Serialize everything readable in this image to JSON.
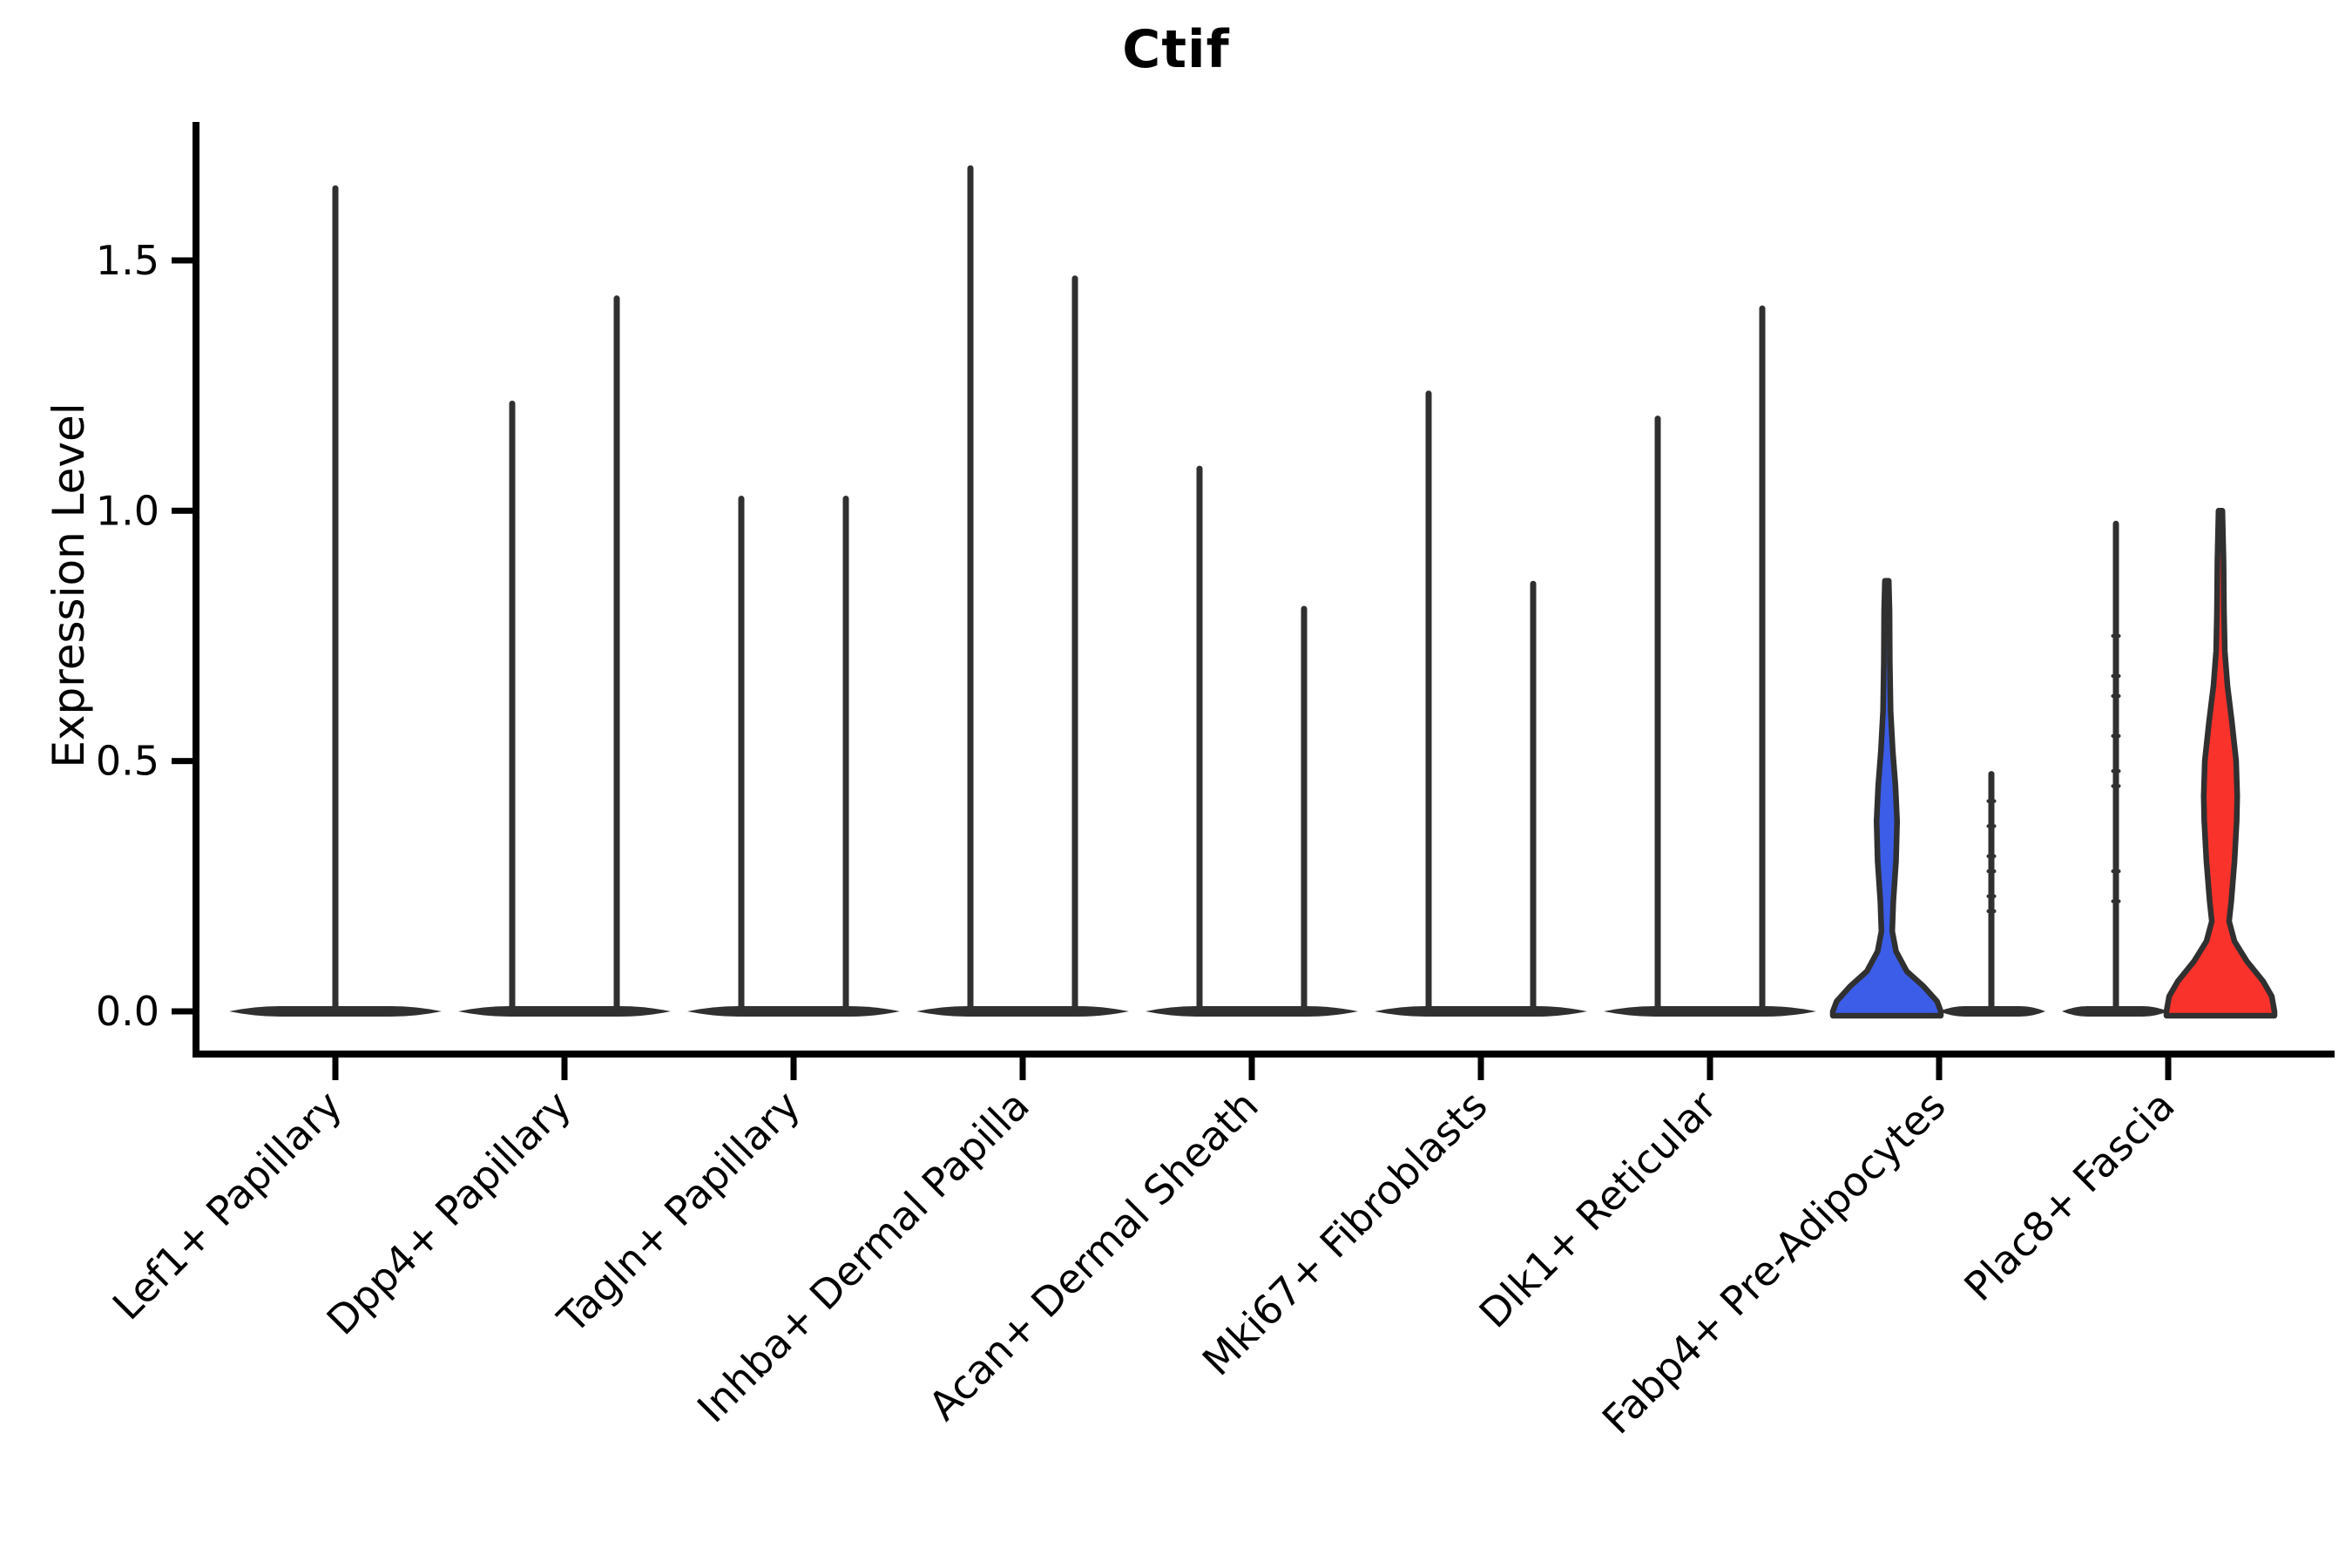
{
  "figure": {
    "title": "Ctif",
    "y_axis_title": "Expression Level"
  },
  "chart_data": {
    "type": "violin",
    "title": "Ctif",
    "xlabel": "",
    "ylabel": "Expression Level",
    "ytick_labels": [
      "0.0",
      "0.5",
      "1.0",
      "1.5"
    ],
    "ytick_values": [
      0.0,
      0.5,
      1.0,
      1.5
    ],
    "ylim": [
      -0.09,
      1.78
    ],
    "grid": false,
    "legend": "none",
    "categories": [
      "Lef1+ Papillary",
      "Dpp4+ Papillary",
      "Tagln+ Papillary",
      "Inhba+ Dermal Papilla",
      "Acan+ Dermal Sheath",
      "Mki67+ Fibroblasts",
      "Dlk1+ Reticular",
      "Fabp4+ Pre-Adipocytes",
      "Plac8+ Fascia"
    ],
    "colors": {
      "violin_outline": "#303030",
      "axis": "#000000",
      "text": "#000000",
      "highlight_blue": "#3b5de8",
      "highlight_red": "#f9322b",
      "background": "#ffffff"
    },
    "violins": [
      {
        "category_index": 0,
        "side": "single",
        "max_expression": 1.65
      },
      {
        "category_index": 1,
        "side": "left",
        "max_expression": 1.22
      },
      {
        "category_index": 1,
        "side": "right",
        "max_expression": 1.43
      },
      {
        "category_index": 2,
        "side": "left",
        "max_expression": 1.03
      },
      {
        "category_index": 2,
        "side": "right",
        "max_expression": 1.03
      },
      {
        "category_index": 3,
        "side": "left",
        "max_expression": 1.69
      },
      {
        "category_index": 3,
        "side": "right",
        "max_expression": 1.47
      },
      {
        "category_index": 4,
        "side": "left",
        "max_expression": 1.09
      },
      {
        "category_index": 4,
        "side": "right",
        "max_expression": 0.81
      },
      {
        "category_index": 5,
        "side": "left",
        "max_expression": 1.24
      },
      {
        "category_index": 5,
        "side": "right",
        "max_expression": 0.86
      },
      {
        "category_index": 6,
        "side": "left",
        "max_expression": 1.19
      },
      {
        "category_index": 6,
        "side": "right",
        "max_expression": 1.41
      },
      {
        "category_index": 7,
        "side": "left",
        "max_expression": 0.86,
        "fill": "#3b5de8",
        "profile": [
          [
            0,
            1.0
          ],
          [
            0.02,
            0.93
          ],
          [
            0.05,
            0.68
          ],
          [
            0.08,
            0.37
          ],
          [
            0.12,
            0.17
          ],
          [
            0.16,
            0.1
          ],
          [
            0.22,
            0.12
          ],
          [
            0.3,
            0.17
          ],
          [
            0.38,
            0.19
          ],
          [
            0.45,
            0.16
          ],
          [
            0.52,
            0.11
          ],
          [
            0.6,
            0.07
          ],
          [
            0.7,
            0.055
          ],
          [
            0.8,
            0.05
          ],
          [
            0.86,
            0.0
          ]
        ]
      },
      {
        "category_index": 7,
        "side": "right",
        "max_expression": 0.48,
        "dots": [
          0.42,
          0.37,
          0.31,
          0.28,
          0.23,
          0.2
        ]
      },
      {
        "category_index": 8,
        "side": "left",
        "max_expression": 0.98,
        "dots": [
          0.75,
          0.67,
          0.63,
          0.55,
          0.48,
          0.45,
          0.28,
          0.22
        ]
      },
      {
        "category_index": 8,
        "side": "right",
        "max_expression": 1.0,
        "fill": "#f9322b",
        "profile": [
          [
            0,
            1.0
          ],
          [
            0.03,
            0.95
          ],
          [
            0.06,
            0.79
          ],
          [
            0.1,
            0.49
          ],
          [
            0.14,
            0.26
          ],
          [
            0.18,
            0.16
          ],
          [
            0.22,
            0.2
          ],
          [
            0.3,
            0.26
          ],
          [
            0.38,
            0.3
          ],
          [
            0.43,
            0.31
          ],
          [
            0.5,
            0.29
          ],
          [
            0.58,
            0.21
          ],
          [
            0.65,
            0.13
          ],
          [
            0.72,
            0.08
          ],
          [
            0.8,
            0.065
          ],
          [
            0.9,
            0.057
          ],
          [
            1.0,
            0.0
          ]
        ]
      }
    ]
  }
}
